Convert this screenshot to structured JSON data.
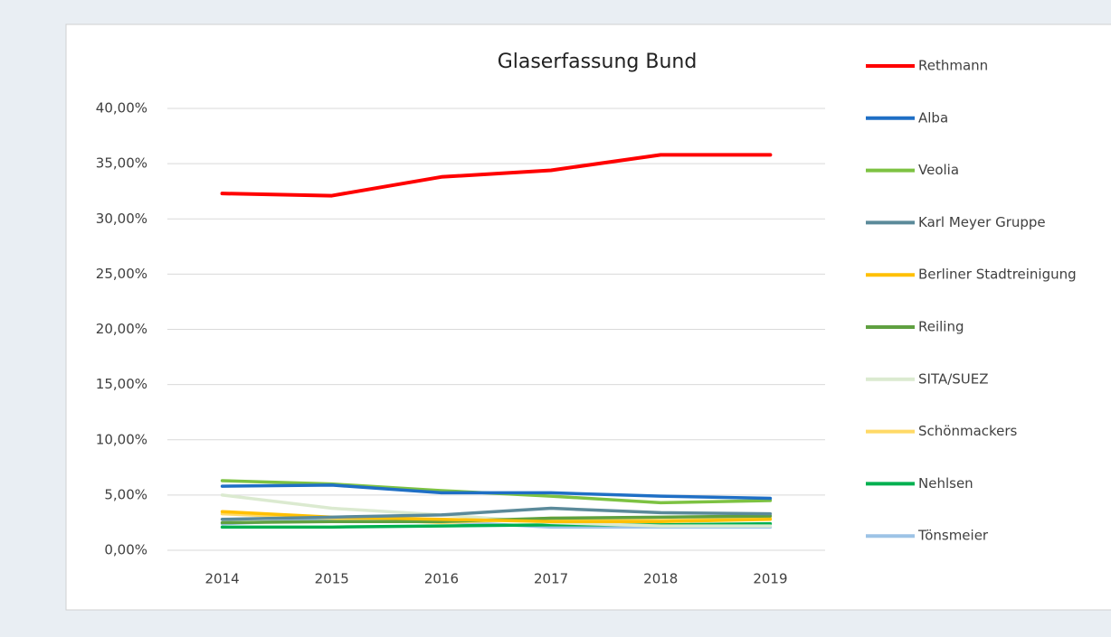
{
  "chart_data": {
    "type": "line",
    "title": "Glaserfassung Bund",
    "categories": [
      "2014",
      "2015",
      "2016",
      "2017",
      "2018",
      "2019"
    ],
    "ylim": [
      0,
      40
    ],
    "yticks": [
      {
        "value": 0,
        "label": "0,00%"
      },
      {
        "value": 5,
        "label": "5,00%"
      },
      {
        "value": 10,
        "label": "10,00%"
      },
      {
        "value": 15,
        "label": "15,00%"
      },
      {
        "value": 20,
        "label": "20,00%"
      },
      {
        "value": 25,
        "label": "25,00%"
      },
      {
        "value": 30,
        "label": "30,00%"
      },
      {
        "value": 35,
        "label": "35,00%"
      },
      {
        "value": 40,
        "label": "40,00%"
      }
    ],
    "grid": true,
    "legend": "right",
    "series": [
      {
        "name": "Rethmann",
        "color": "#ff0000",
        "values": [
          32.3,
          32.1,
          33.8,
          34.4,
          35.8,
          35.8
        ]
      },
      {
        "name": "Alba",
        "color": "#1f6fc5",
        "values": [
          5.8,
          5.9,
          5.2,
          5.2,
          4.9,
          4.7
        ]
      },
      {
        "name": "Veolia",
        "color": "#7dc242",
        "values": [
          6.3,
          6.0,
          5.4,
          4.9,
          4.3,
          4.5
        ]
      },
      {
        "name": "Karl Meyer Gruppe",
        "color": "#5b8a9a",
        "values": [
          2.8,
          3.0,
          3.2,
          3.8,
          3.4,
          3.3
        ]
      },
      {
        "name": "Berliner Stadtreinigung",
        "color": "#ffc000",
        "values": [
          3.5,
          3.0,
          2.8,
          2.6,
          2.6,
          2.8
        ]
      },
      {
        "name": "Reiling",
        "color": "#5fa040",
        "values": [
          2.5,
          2.6,
          2.6,
          2.9,
          3.0,
          3.1
        ]
      },
      {
        "name": "SITA/SUEZ",
        "color": "#dbead0",
        "values": [
          5.0,
          3.8,
          3.2,
          2.5,
          2.2,
          2.2
        ]
      },
      {
        "name": "Schönmackers",
        "color": "#ffd966",
        "values": [
          3.3,
          2.9,
          2.5,
          2.9,
          2.7,
          2.9
        ]
      },
      {
        "name": "Nehlsen",
        "color": "#00b050",
        "values": [
          2.1,
          2.1,
          2.2,
          2.3,
          2.3,
          2.4
        ]
      },
      {
        "name": "Tönsmeier",
        "color": "#9dc3e6",
        "values": [
          2.4,
          2.8,
          2.6,
          2.1,
          2.1,
          2.1
        ]
      }
    ]
  }
}
